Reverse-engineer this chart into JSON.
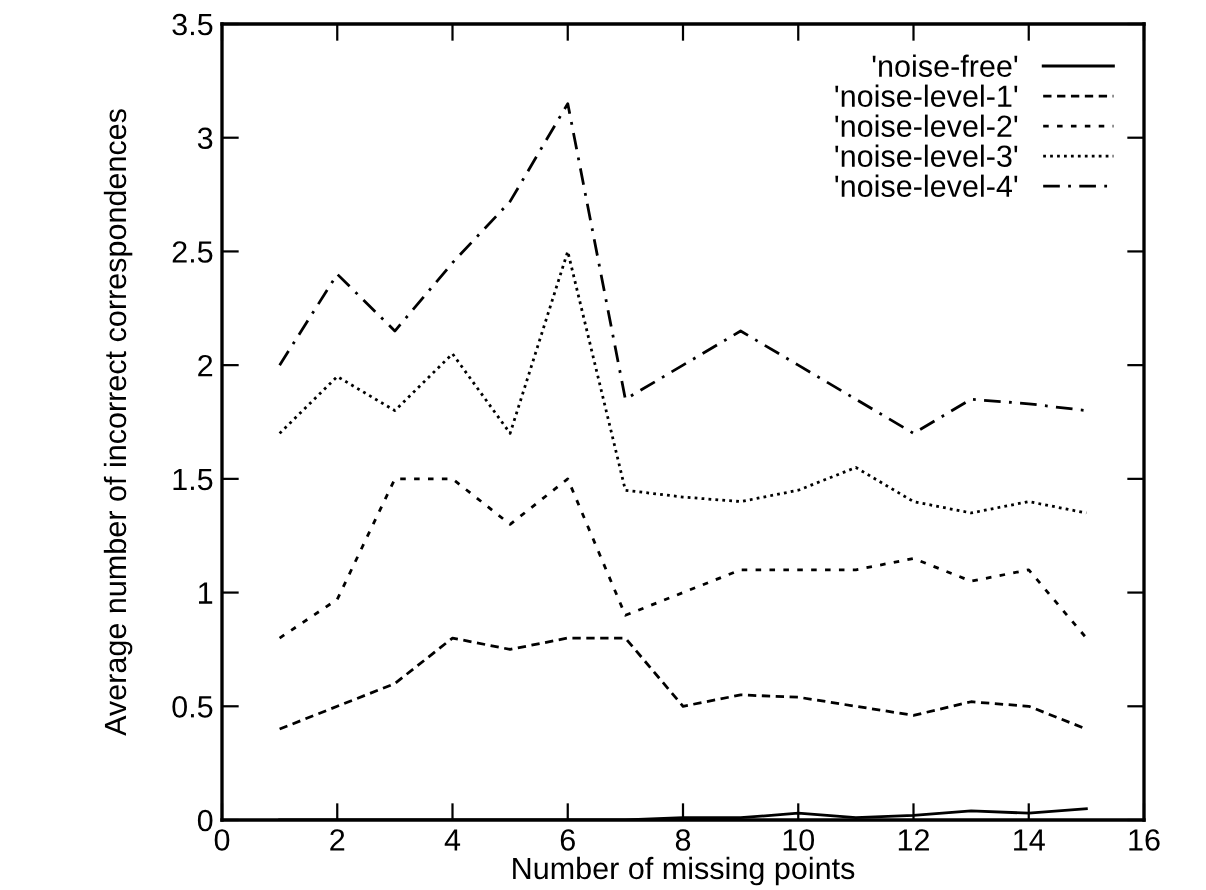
{
  "chart_data": {
    "type": "line",
    "xlabel": "Number of missing points",
    "ylabel": "Average number of incorrect correspondences",
    "x": [
      1,
      2,
      3,
      4,
      5,
      6,
      7,
      8,
      9,
      10,
      11,
      12,
      13,
      14,
      15
    ],
    "xlim": [
      0,
      16
    ],
    "xticks": [
      0,
      2,
      4,
      6,
      8,
      10,
      12,
      14,
      16
    ],
    "ylim": [
      0,
      3.5
    ],
    "yticks": [
      0,
      0.5,
      1,
      1.5,
      2,
      2.5,
      3,
      3.5
    ],
    "grid": false,
    "legend": "top right",
    "marker": "none",
    "series": [
      {
        "name": "'noise-free'",
        "color": "#000000",
        "line_style": "solid",
        "values": [
          0,
          0,
          0,
          0,
          0,
          0,
          0,
          0.01,
          0.01,
          0.03,
          0.01,
          0.02,
          0.04,
          0.03,
          0.05
        ]
      },
      {
        "name": "'noise-level-1'",
        "color": "#000000",
        "line_style": "dashed",
        "values": [
          0.4,
          0.5,
          0.6,
          0.8,
          0.75,
          0.8,
          0.8,
          0.5,
          0.55,
          0.54,
          0.5,
          0.46,
          0.52,
          0.5,
          0.4
        ]
      },
      {
        "name": "'noise-level-2'",
        "color": "#000000",
        "line_style": "dotted",
        "values": [
          0.8,
          0.97,
          1.5,
          1.5,
          1.3,
          1.5,
          0.9,
          1.0,
          1.1,
          1.1,
          1.1,
          1.15,
          1.05,
          1.1,
          0.8
        ]
      },
      {
        "name": "'noise-level-3'",
        "color": "#000000",
        "line_style": "densely dotted",
        "values": [
          1.7,
          1.95,
          1.8,
          2.05,
          1.7,
          2.5,
          1.45,
          1.42,
          1.4,
          1.45,
          1.55,
          1.4,
          1.35,
          1.4,
          1.35
        ]
      },
      {
        "name": "'noise-level-4'",
        "color": "#000000",
        "line_style": "dashdot",
        "values": [
          2.0,
          2.4,
          2.15,
          2.45,
          2.72,
          3.15,
          1.85,
          2.0,
          2.15,
          2.0,
          1.85,
          1.7,
          1.85,
          1.83,
          1.8
        ]
      }
    ]
  }
}
